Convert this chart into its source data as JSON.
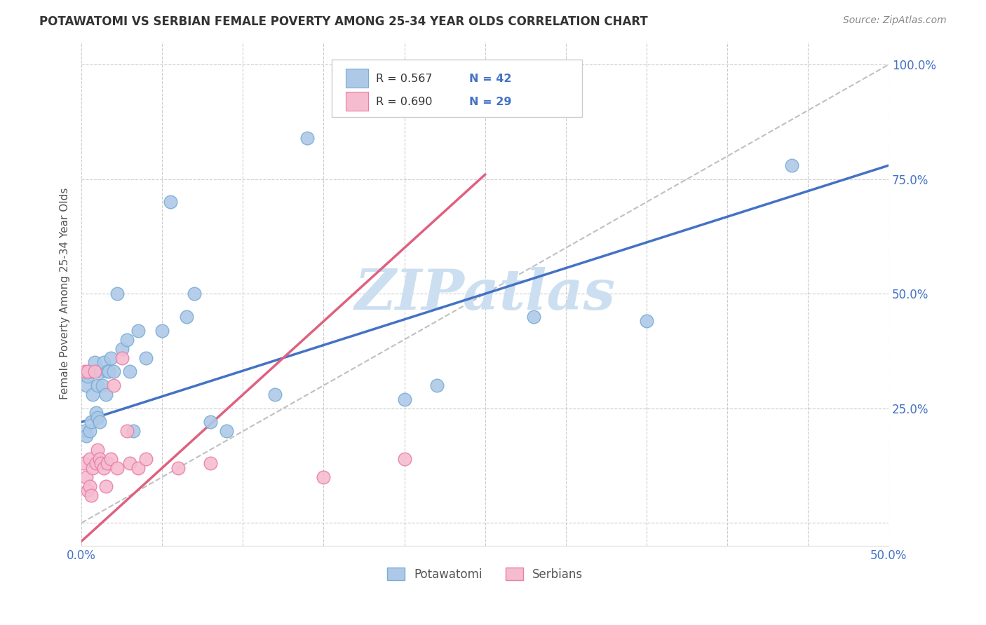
{
  "title": "POTAWATOMI VS SERBIAN FEMALE POVERTY AMONG 25-34 YEAR OLDS CORRELATION CHART",
  "source": "Source: ZipAtlas.com",
  "ylabel": "Female Poverty Among 25-34 Year Olds",
  "xlim": [
    0.0,
    0.5
  ],
  "ylim": [
    -0.05,
    1.05
  ],
  "xticks": [
    0.0,
    0.05,
    0.1,
    0.15,
    0.2,
    0.25,
    0.3,
    0.35,
    0.4,
    0.45,
    0.5
  ],
  "xticklabels": [
    "0.0%",
    "",
    "",
    "",
    "",
    "",
    "",
    "",
    "",
    "",
    "50.0%"
  ],
  "yticks": [
    0.0,
    0.25,
    0.5,
    0.75,
    1.0
  ],
  "yticklabels_right": [
    "",
    "25.0%",
    "50.0%",
    "75.0%",
    "100.0%"
  ],
  "background_color": "#ffffff",
  "grid_color": "#cccccc",
  "potawatomi_color": "#aec9e8",
  "serbian_color": "#f5bcd0",
  "potawatomi_edge": "#7aadd4",
  "serbian_edge": "#e87fa8",
  "blue_line_color": "#4472c4",
  "pink_line_color": "#e06080",
  "diag_line_color": "#c0c0c0",
  "watermark_color": "#ccdff0",
  "potawatomi_x": [
    0.002,
    0.003,
    0.003,
    0.004,
    0.005,
    0.005,
    0.006,
    0.006,
    0.007,
    0.008,
    0.009,
    0.01,
    0.01,
    0.011,
    0.012,
    0.013,
    0.014,
    0.015,
    0.016,
    0.017,
    0.018,
    0.02,
    0.022,
    0.025,
    0.028,
    0.03,
    0.032,
    0.035,
    0.04,
    0.05,
    0.055,
    0.065,
    0.07,
    0.08,
    0.09,
    0.12,
    0.14,
    0.2,
    0.22,
    0.28,
    0.35,
    0.44
  ],
  "potawatomi_y": [
    0.2,
    0.19,
    0.3,
    0.32,
    0.2,
    0.33,
    0.22,
    0.33,
    0.28,
    0.35,
    0.24,
    0.23,
    0.3,
    0.22,
    0.33,
    0.3,
    0.35,
    0.28,
    0.33,
    0.33,
    0.36,
    0.33,
    0.5,
    0.38,
    0.4,
    0.33,
    0.2,
    0.42,
    0.36,
    0.42,
    0.7,
    0.45,
    0.5,
    0.22,
    0.2,
    0.28,
    0.84,
    0.27,
    0.3,
    0.45,
    0.44,
    0.78
  ],
  "serbian_x": [
    0.001,
    0.002,
    0.003,
    0.004,
    0.004,
    0.005,
    0.005,
    0.006,
    0.007,
    0.008,
    0.009,
    0.01,
    0.011,
    0.012,
    0.014,
    0.015,
    0.016,
    0.018,
    0.02,
    0.022,
    0.025,
    0.028,
    0.03,
    0.035,
    0.04,
    0.06,
    0.08,
    0.15,
    0.2
  ],
  "serbian_y": [
    0.13,
    0.33,
    0.1,
    0.07,
    0.33,
    0.08,
    0.14,
    0.06,
    0.12,
    0.33,
    0.13,
    0.16,
    0.14,
    0.13,
    0.12,
    0.08,
    0.13,
    0.14,
    0.3,
    0.12,
    0.36,
    0.2,
    0.13,
    0.12,
    0.14,
    0.12,
    0.13,
    0.1,
    0.14
  ],
  "blue_line_x": [
    0.0,
    0.5
  ],
  "blue_line_y": [
    0.22,
    0.78
  ],
  "pink_line_x": [
    0.0,
    0.25
  ],
  "pink_line_y": [
    -0.04,
    0.76
  ],
  "diag_line_x": [
    0.0,
    0.5
  ],
  "diag_line_y": [
    0.0,
    1.0
  ]
}
